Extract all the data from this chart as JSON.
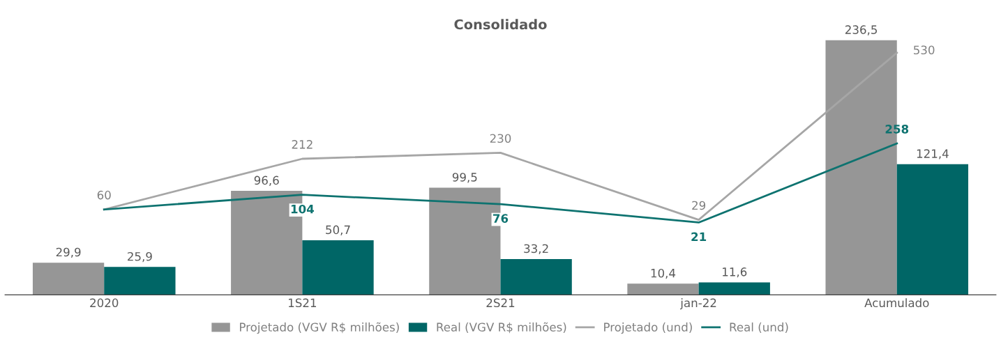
{
  "chart_data": {
    "type": "bar",
    "title": "Consolidado",
    "categories": [
      "2020",
      "1S21",
      "2S21",
      "jan-22",
      "Acumulado"
    ],
    "series": [
      {
        "name": "Projetado (VGV R$ milhões)",
        "color": "#969696",
        "values": [
          29.9,
          96.6,
          99.5,
          10.4,
          236.5
        ],
        "value_labels": [
          "29,9",
          "96,6",
          "99,5",
          "10,4",
          "236,5"
        ]
      },
      {
        "name": "Real (VGV R$ milhões)",
        "color": "#006666",
        "values": [
          25.9,
          50.7,
          33.2,
          11.6,
          121.4
        ],
        "value_labels": [
          "25,9",
          "50,7",
          "33,2",
          "11,6",
          "121,4"
        ]
      },
      {
        "name": "Projetado (und)",
        "type": "line",
        "axis": "y2",
        "color": "#a6a6a6",
        "values": [
          60,
          212,
          230,
          29,
          530
        ],
        "value_labels": [
          "60",
          "212",
          "230",
          "29",
          "530"
        ]
      },
      {
        "name": "Real (und)",
        "type": "line",
        "axis": "y2",
        "color": "#0e7370",
        "values": [
          60,
          104,
          76,
          21,
          258
        ],
        "value_labels": [
          null,
          "104",
          "76",
          "21",
          "258"
        ]
      }
    ],
    "tick_labels": "x",
    "legend": "bottom"
  }
}
